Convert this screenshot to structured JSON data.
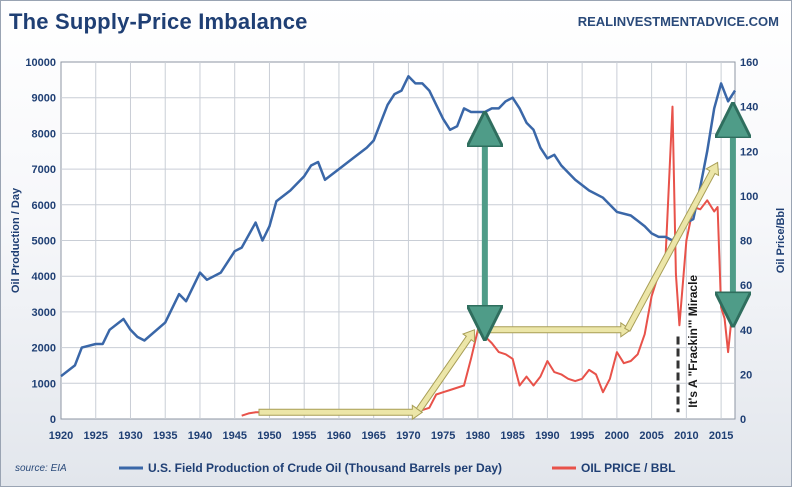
{
  "header": {
    "title": "The Supply-Price Imbalance",
    "site": "REALINVESTMENTADVICE.COM"
  },
  "footer": {
    "source": "source: EIA"
  },
  "annotation": {
    "text": "It's A \"Frackin'\" Miracle"
  },
  "colors": {
    "production": "#3a67a8",
    "price": "#e8524a",
    "grid": "#c9ced6",
    "axis_text": "#1f3f74",
    "arrow_yellow": "#ece6a8",
    "arrow_teal": "#4f9c88"
  },
  "chart_data": {
    "type": "line",
    "title": "The Supply-Price Imbalance",
    "xlabel": "",
    "ylabel_left": "Oil Production / Day",
    "ylabel_right": "Oil Price/Bbl",
    "xlim": [
      1920,
      2017
    ],
    "ylim_left": [
      0,
      10000
    ],
    "ylim_right": [
      0,
      160
    ],
    "x_ticks": [
      1920,
      1925,
      1930,
      1935,
      1940,
      1945,
      1950,
      1955,
      1960,
      1965,
      1970,
      1975,
      1980,
      1985,
      1990,
      1995,
      2000,
      2005,
      2010,
      2015
    ],
    "y_ticks_left": [
      0,
      1000,
      2000,
      3000,
      4000,
      5000,
      6000,
      7000,
      8000,
      9000,
      10000
    ],
    "y_ticks_right": [
      0,
      20,
      40,
      60,
      80,
      100,
      120,
      140,
      160
    ],
    "grid": true,
    "legend_position": "bottom",
    "series": [
      {
        "name": "U.S. Field Production of Crude Oil (Thousand Barrels per Day)",
        "axis": "left",
        "x": [
          1920,
          1922,
          1923,
          1925,
          1926,
          1927,
          1929,
          1930,
          1931,
          1932,
          1935,
          1937,
          1938,
          1940,
          1941,
          1943,
          1945,
          1946,
          1948,
          1949,
          1950,
          1951,
          1953,
          1955,
          1956,
          1957,
          1958,
          1960,
          1962,
          1964,
          1965,
          1966,
          1967,
          1968,
          1969,
          1970,
          1971,
          1972,
          1973,
          1974,
          1975,
          1976,
          1977,
          1978,
          1979,
          1980,
          1981,
          1982,
          1983,
          1984,
          1985,
          1986,
          1987,
          1988,
          1989,
          1990,
          1991,
          1992,
          1994,
          1996,
          1998,
          2000,
          2002,
          2004,
          2005,
          2006,
          2007,
          2008,
          2009,
          2010,
          2011,
          2012,
          2013,
          2014,
          2015,
          2016,
          2017
        ],
        "values": [
          1200,
          1500,
          2000,
          2100,
          2100,
          2500,
          2800,
          2500,
          2300,
          2200,
          2700,
          3500,
          3300,
          4100,
          3900,
          4100,
          4700,
          4800,
          5500,
          5000,
          5400,
          6100,
          6400,
          6800,
          7100,
          7200,
          6700,
          7000,
          7300,
          7600,
          7800,
          8300,
          8800,
          9100,
          9200,
          9600,
          9400,
          9400,
          9200,
          8800,
          8400,
          8100,
          8200,
          8700,
          8600,
          8600,
          8600,
          8700,
          8700,
          8900,
          9000,
          8700,
          8300,
          8100,
          7600,
          7300,
          7400,
          7100,
          6700,
          6400,
          6200,
          5800,
          5700,
          5400,
          5200,
          5100,
          5100,
          5000,
          5300,
          5500,
          5600,
          6500,
          7500,
          8700,
          9400,
          8900,
          9200
        ]
      },
      {
        "name": "OIL PRICE / BBL",
        "axis": "right",
        "x": [
          1946,
          1947,
          1948,
          1950,
          1955,
          1960,
          1965,
          1970,
          1972,
          1973,
          1974,
          1975,
          1976,
          1978,
          1979,
          1980,
          1981,
          1982,
          1983,
          1984,
          1985,
          1986,
          1987,
          1988,
          1989,
          1990,
          1991,
          1992,
          1993,
          1994,
          1995,
          1996,
          1997,
          1998,
          1999,
          2000,
          2001,
          2002,
          2003,
          2004,
          2005,
          2006,
          2007,
          2008,
          2008.5,
          2009,
          2010,
          2011,
          2012,
          2013,
          2014,
          2014.5,
          2015,
          2015.5,
          2016,
          2016.5,
          2017
        ],
        "values": [
          1.5,
          2.5,
          3,
          3,
          3.5,
          3.5,
          3.5,
          3.5,
          4,
          5,
          11,
          12,
          13,
          15,
          27,
          40,
          37,
          34,
          30,
          29,
          27,
          15,
          19,
          15,
          19,
          26,
          21,
          20,
          18,
          17,
          18,
          22,
          20,
          12,
          18,
          30,
          25,
          26,
          29,
          38,
          55,
          65,
          72,
          140,
          65,
          42,
          80,
          95,
          94,
          98,
          93,
          95,
          50,
          45,
          30,
          45,
          48
        ]
      }
    ],
    "annotations": [
      "It's A \"Frackin'\" Miracle"
    ]
  }
}
